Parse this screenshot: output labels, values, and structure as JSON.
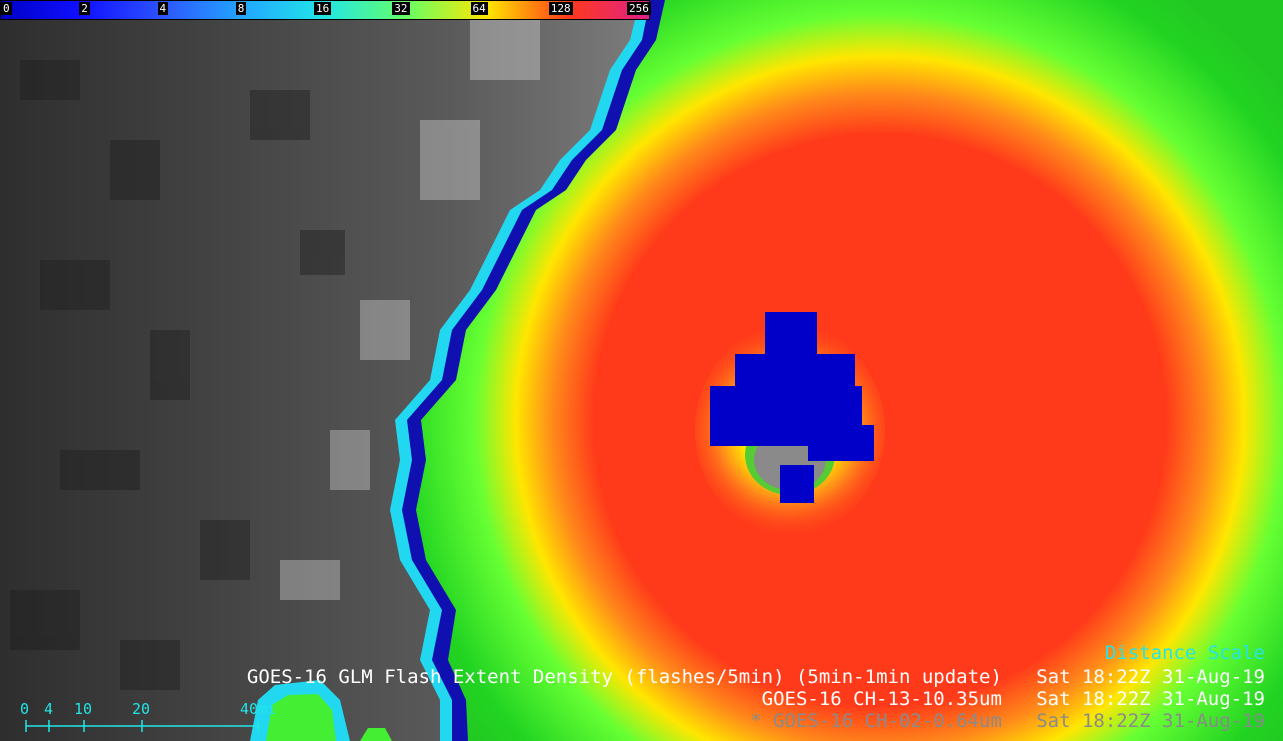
{
  "colorbar": {
    "ticks": [
      "0",
      "2",
      "4",
      "8",
      "16",
      "32",
      "64",
      "128",
      "256"
    ],
    "colors": [
      "#0000c8",
      "#1010ff",
      "#2d55ff",
      "#22a8ff",
      "#22e6e6",
      "#66ff66",
      "#ffe600",
      "#ff3a1a",
      "#e0208a"
    ]
  },
  "distance_scale": {
    "title": "Distance Scale",
    "labels": [
      "0",
      "4",
      "10",
      "20",
      "40mi"
    ]
  },
  "overlay": {
    "line1": "GOES-16 GLM Flash Extent Density (flashes/5min) (5min-1min update)   Sat 18:22Z 31-Aug-19",
    "line2": "GOES-16 CH-13-10.35um   Sat 18:22Z 31-Aug-19",
    "line3": "* GOES-16 CH-02-0.64um   Sat 18:22Z 31-Aug-19"
  }
}
